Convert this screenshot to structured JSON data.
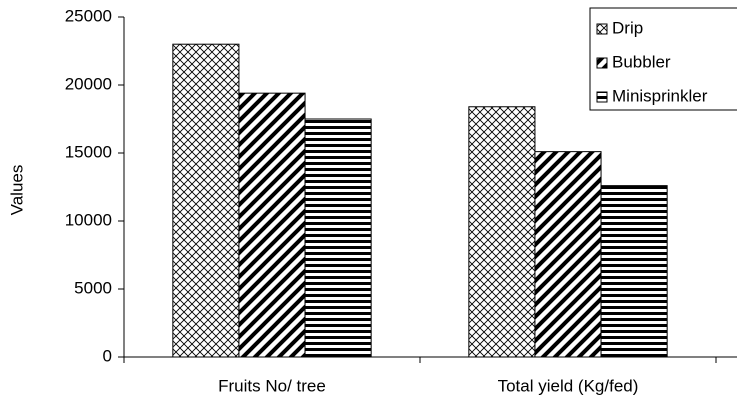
{
  "chart_data": {
    "type": "bar",
    "y_label": "Values",
    "categories": [
      "Fruits No/ tree",
      "Total yield (Kg/fed)"
    ],
    "series": [
      {
        "name": "Drip",
        "color": "#000000",
        "pattern": "crosshatch",
        "values": [
          23000,
          18400
        ]
      },
      {
        "name": "Bubbler",
        "color": "#000000",
        "pattern": "diagonal",
        "values": [
          19400,
          15100
        ]
      },
      {
        "name": "Minisprinkler",
        "color": "#000000",
        "pattern": "horizontal",
        "values": [
          17500,
          12600
        ]
      }
    ],
    "ylim": [
      0,
      25000
    ],
    "yticks": [
      0,
      5000,
      10000,
      15000,
      20000,
      25000
    ],
    "legend": "top-right"
  }
}
